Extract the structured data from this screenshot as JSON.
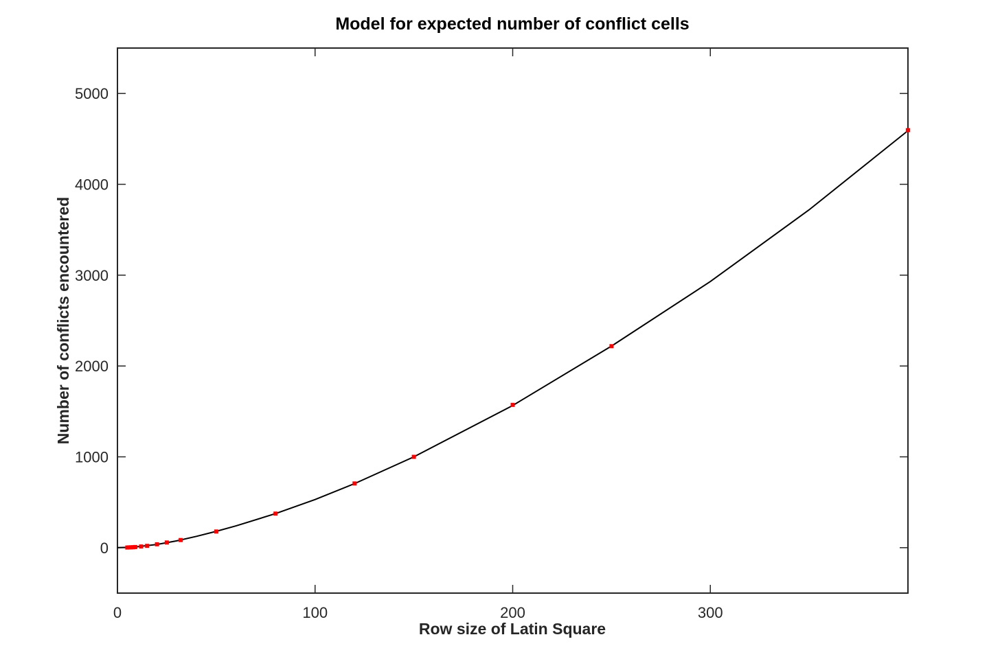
{
  "chart_data": {
    "type": "scatter",
    "title": "Model for expected number of conflict cells",
    "xlabel": "Row size of Latin Square",
    "ylabel": "Number of conflicts encountered",
    "xlim": [
      0,
      400
    ],
    "ylim": [
      -500,
      5500
    ],
    "x_ticks": [
      0,
      100,
      200,
      300
    ],
    "y_ticks": [
      0,
      1000,
      2000,
      3000,
      4000,
      5000
    ],
    "grid": false,
    "series": [
      {
        "kind": "points",
        "color": "#ff0000",
        "x": [
          5,
          6,
          7,
          8,
          9,
          12,
          15,
          20,
          25,
          32,
          50,
          80,
          120,
          150,
          200,
          250,
          400
        ],
        "y": [
          2,
          3,
          4,
          5,
          7,
          13,
          20,
          37,
          57,
          84,
          178,
          375,
          707,
          1000,
          1572,
          2218,
          4596
        ]
      },
      {
        "kind": "curve",
        "color": "#000000",
        "x": [
          0,
          5,
          10,
          20,
          30,
          40,
          50,
          60,
          80,
          100,
          120,
          150,
          200,
          250,
          300,
          350,
          400
        ],
        "y": [
          0,
          3,
          10,
          36,
          75,
          125,
          180,
          240,
          375,
          530,
          705,
          1000,
          1565,
          2220,
          2930,
          3720,
          4590
        ]
      }
    ]
  }
}
